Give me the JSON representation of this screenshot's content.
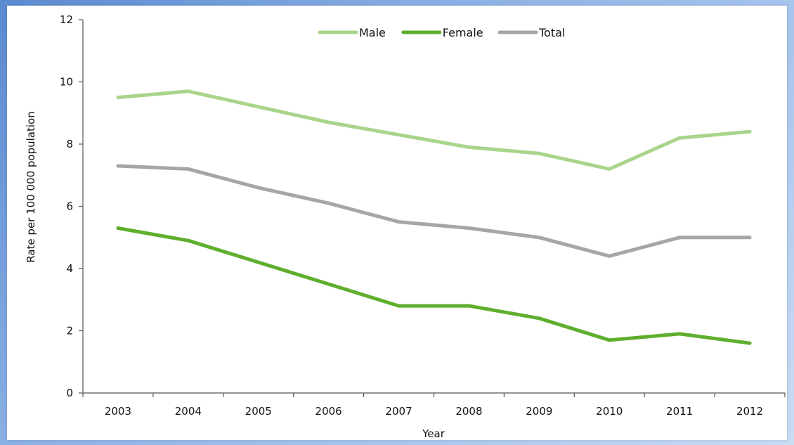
{
  "chart_data": {
    "type": "line",
    "title": "",
    "xlabel": "Year",
    "ylabel": "Rate per 100 000 population",
    "x": [
      "2003",
      "2004",
      "2005",
      "2006",
      "2007",
      "2008",
      "2009",
      "2010",
      "2011",
      "2012"
    ],
    "ylim": [
      0,
      12
    ],
    "yticks": [
      0,
      2,
      4,
      6,
      8,
      10,
      12
    ],
    "grid": false,
    "legend_position": "top-center",
    "series": [
      {
        "name": "Male",
        "color": "#a9d48c",
        "values": [
          9.5,
          9.7,
          9.2,
          8.7,
          8.3,
          7.9,
          7.7,
          7.2,
          8.2,
          8.4
        ]
      },
      {
        "name": "Female",
        "color": "#5fae2e",
        "values": [
          5.3,
          4.9,
          4.2,
          3.5,
          2.8,
          2.8,
          2.4,
          1.7,
          1.9,
          1.6
        ]
      },
      {
        "name": "Total",
        "color": "#a6a6a6",
        "values": [
          7.3,
          7.2,
          6.6,
          6.1,
          5.5,
          5.3,
          5.0,
          4.4,
          5.0,
          5.0
        ]
      }
    ]
  }
}
